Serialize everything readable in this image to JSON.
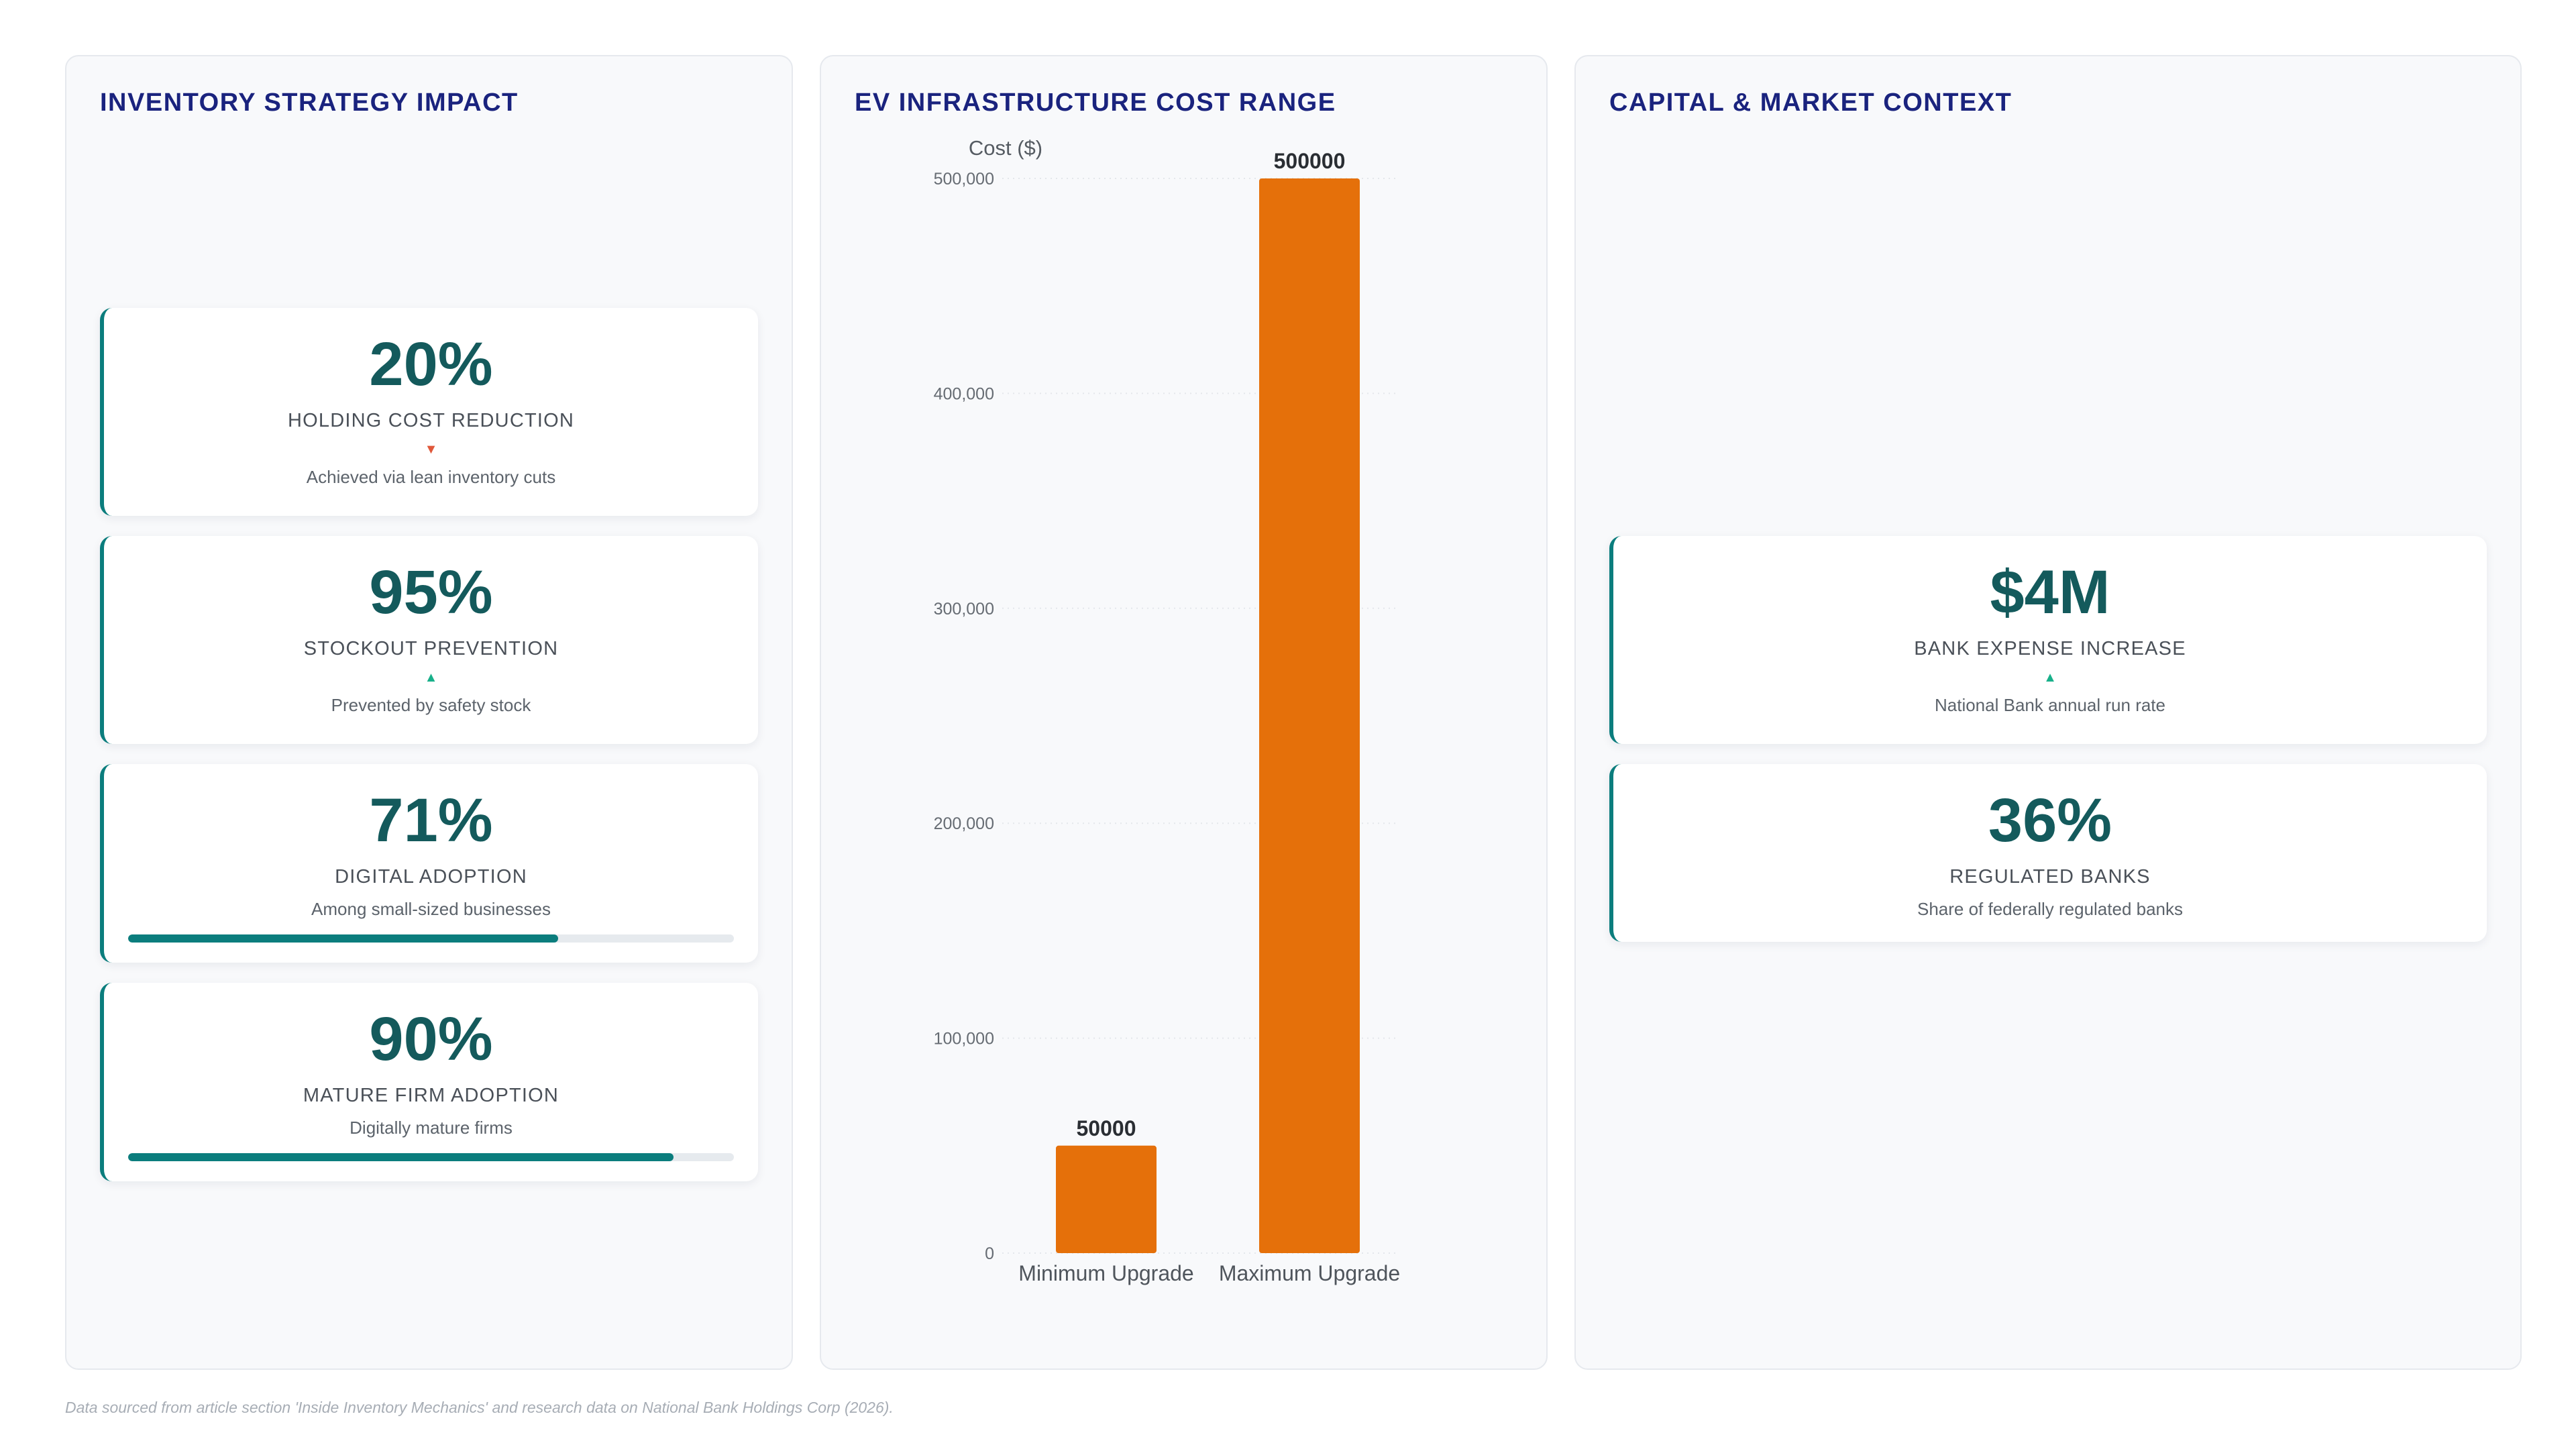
{
  "panels": {
    "inventory": {
      "title": "INVENTORY STRATEGY IMPACT",
      "kpis": [
        {
          "value": "20%",
          "label": "HOLDING COST REDUCTION",
          "trend": "down",
          "arrow": "▼",
          "sub": "Achieved via lean inventory cuts"
        },
        {
          "value": "95%",
          "label": "STOCKOUT PREVENTION",
          "trend": "up",
          "arrow": "▲",
          "sub": "Prevented by safety stock"
        },
        {
          "value": "71%",
          "label": "DIGITAL ADOPTION",
          "sub": "Among small-sized businesses",
          "progress": 71
        },
        {
          "value": "90%",
          "label": "MATURE FIRM ADOPTION",
          "sub": "Digitally mature firms",
          "progress": 90
        }
      ]
    },
    "ev": {
      "title": "EV INFRASTRUCTURE COST RANGE"
    },
    "capital": {
      "title": "CAPITAL & MARKET CONTEXT",
      "kpis": [
        {
          "value": "$4M",
          "label": "BANK EXPENSE INCREASE",
          "trend": "up",
          "arrow": "▲",
          "sub": "National Bank annual run rate"
        },
        {
          "value": "36%",
          "label": "REGULATED BANKS",
          "sub": "Share of federally regulated banks"
        }
      ]
    }
  },
  "chart_data": {
    "type": "bar",
    "categories": [
      "Minimum Upgrade",
      "Maximum Upgrade"
    ],
    "values": [
      50000,
      500000
    ],
    "data_labels": [
      "50000",
      "500000"
    ],
    "title": "EV INFRASTRUCTURE COST RANGE",
    "xlabel": "",
    "ylabel": "Cost ($)",
    "ylim": [
      0,
      500000
    ],
    "yticks": [
      0,
      100000,
      200000,
      300000,
      400000,
      500000
    ],
    "ytick_labels": [
      "0",
      "100,000",
      "200,000",
      "300,000",
      "400,000",
      "500,000"
    ],
    "grid": true,
    "legend": "none",
    "bar_color": "#e5700a"
  },
  "footnote": "Data sourced from article section 'Inside Inventory Mechanics' and research data on National Bank Holdings Corp (2026).",
  "colors": {
    "title": "#1a237e",
    "value": "#145a5c",
    "accent": "#0b7d7d",
    "trend_down": "#e0583a",
    "trend_up": "#18b08a",
    "bar": "#e5700a"
  }
}
